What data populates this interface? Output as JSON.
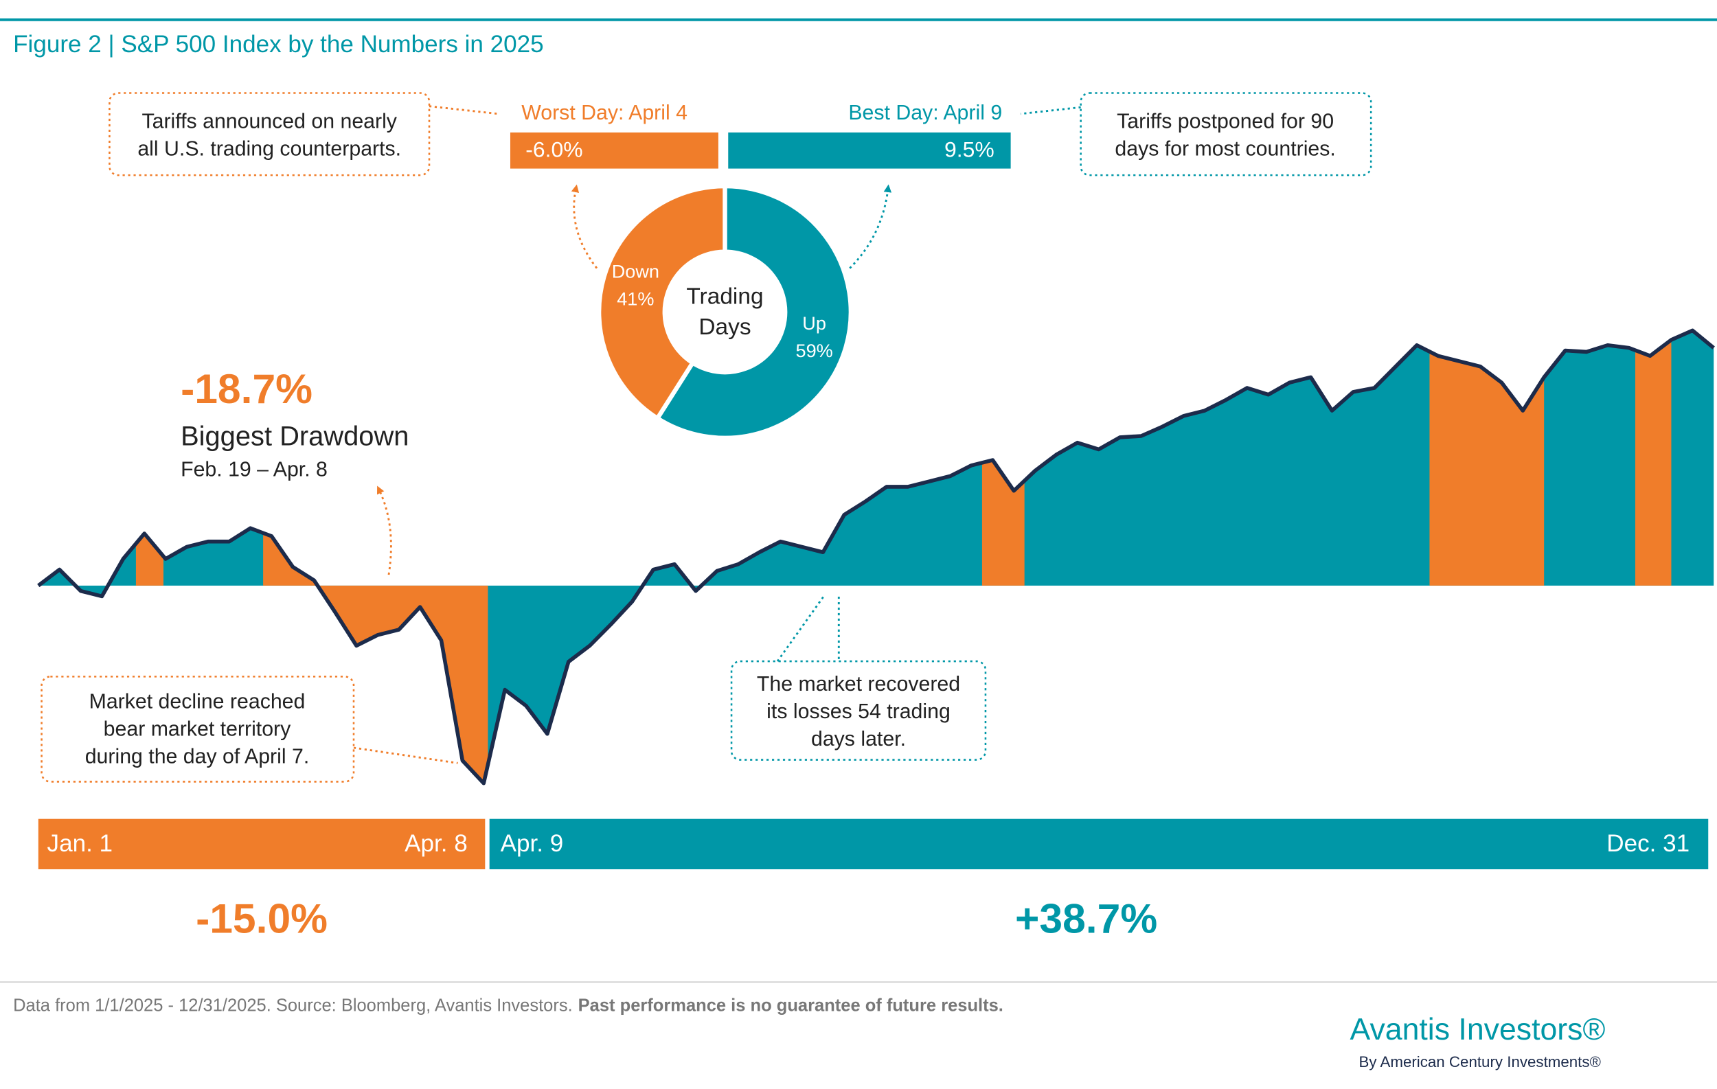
{
  "header": {
    "title": "Figure 2 | S&P 500 Index by the Numbers in 2025"
  },
  "chart_data": [
    {
      "type": "pie",
      "donut": true,
      "center_label": [
        "Trading",
        "Days"
      ],
      "categories": [
        "Down",
        "Up"
      ],
      "values": [
        41,
        59
      ],
      "value_labels": [
        "41%",
        "59%"
      ],
      "colors": [
        "#f07d2a",
        "#0097a7"
      ]
    },
    {
      "type": "area",
      "color": "#0097a7",
      "line_color": "#1c2b4b",
      "highlight_color": "#f07d2a",
      "drawdown_ranges": [
        [
          4.6,
          5.9
        ],
        [
          10.6,
          21.2
        ],
        [
          44.5,
          46.5
        ],
        [
          65.6,
          71.0
        ],
        [
          75.3,
          77.0
        ]
      ],
      "ylim": [
        -15.5,
        19.5
      ],
      "values": [
        0,
        1.2,
        -0.4,
        -0.8,
        2.0,
        3.9,
        2.0,
        2.9,
        3.3,
        3.3,
        4.3,
        3.7,
        1.4,
        0.4,
        -2.0,
        -4.5,
        -3.7,
        -3.3,
        -1.6,
        -4.1,
        -13.1,
        -14.8,
        -7.8,
        -9.0,
        -11.1,
        -5.7,
        -4.5,
        -2.9,
        -1.2,
        1.2,
        1.6,
        -0.4,
        1.1,
        1.6,
        2.5,
        3.3,
        2.9,
        2.5,
        5.3,
        6.3,
        7.4,
        7.4,
        7.8,
        8.2,
        9.0,
        9.4,
        7.1,
        8.6,
        9.8,
        10.7,
        10.2,
        11.1,
        11.2,
        11.9,
        12.7,
        13.1,
        13.9,
        14.8,
        14.3,
        15.2,
        15.6,
        13.1,
        14.5,
        14.8,
        16.4,
        18.0,
        17.2,
        16.8,
        16.4,
        15.2,
        13.1,
        15.6,
        17.6,
        17.5,
        18.0,
        17.8,
        17.2,
        18.4,
        19.1,
        17.8
      ]
    }
  ],
  "annotations": {
    "tariffs_announced": [
      "Tariffs announced on nearly",
      "all U.S. trading counterparts."
    ],
    "worst_day": {
      "label": "Worst Day: April 4",
      "value": "-6.0%"
    },
    "best_day": {
      "label": "Best Day: April 9",
      "value": "9.5%"
    },
    "tariffs_postponed": [
      "Tariffs postponed for 90",
      "days for most countries."
    ],
    "drawdown": {
      "value": "-18.7%",
      "label": "Biggest Drawdown",
      "dates": "Feb. 19 – Apr. 8"
    },
    "bear_market": [
      "Market decline reached",
      "bear market territory",
      "during the day of April 7."
    ],
    "recovery": [
      "The market recovered",
      "its losses 54 trading",
      "days later."
    ],
    "periods": [
      {
        "start": "Jan. 1",
        "end": "Apr. 8",
        "change": "-15.0%"
      },
      {
        "start": "Apr. 9",
        "end": "Dec. 31",
        "change": "+38.7%"
      }
    ]
  },
  "footer": {
    "source": "Data from 1/1/2025 - 12/31/2025. Source: Bloomberg, Avantis Investors.",
    "disclaimer": "Past performance is no guarantee of future results.",
    "logo": "Avantis Investors®",
    "logo_sub": "By American Century Investments®"
  }
}
